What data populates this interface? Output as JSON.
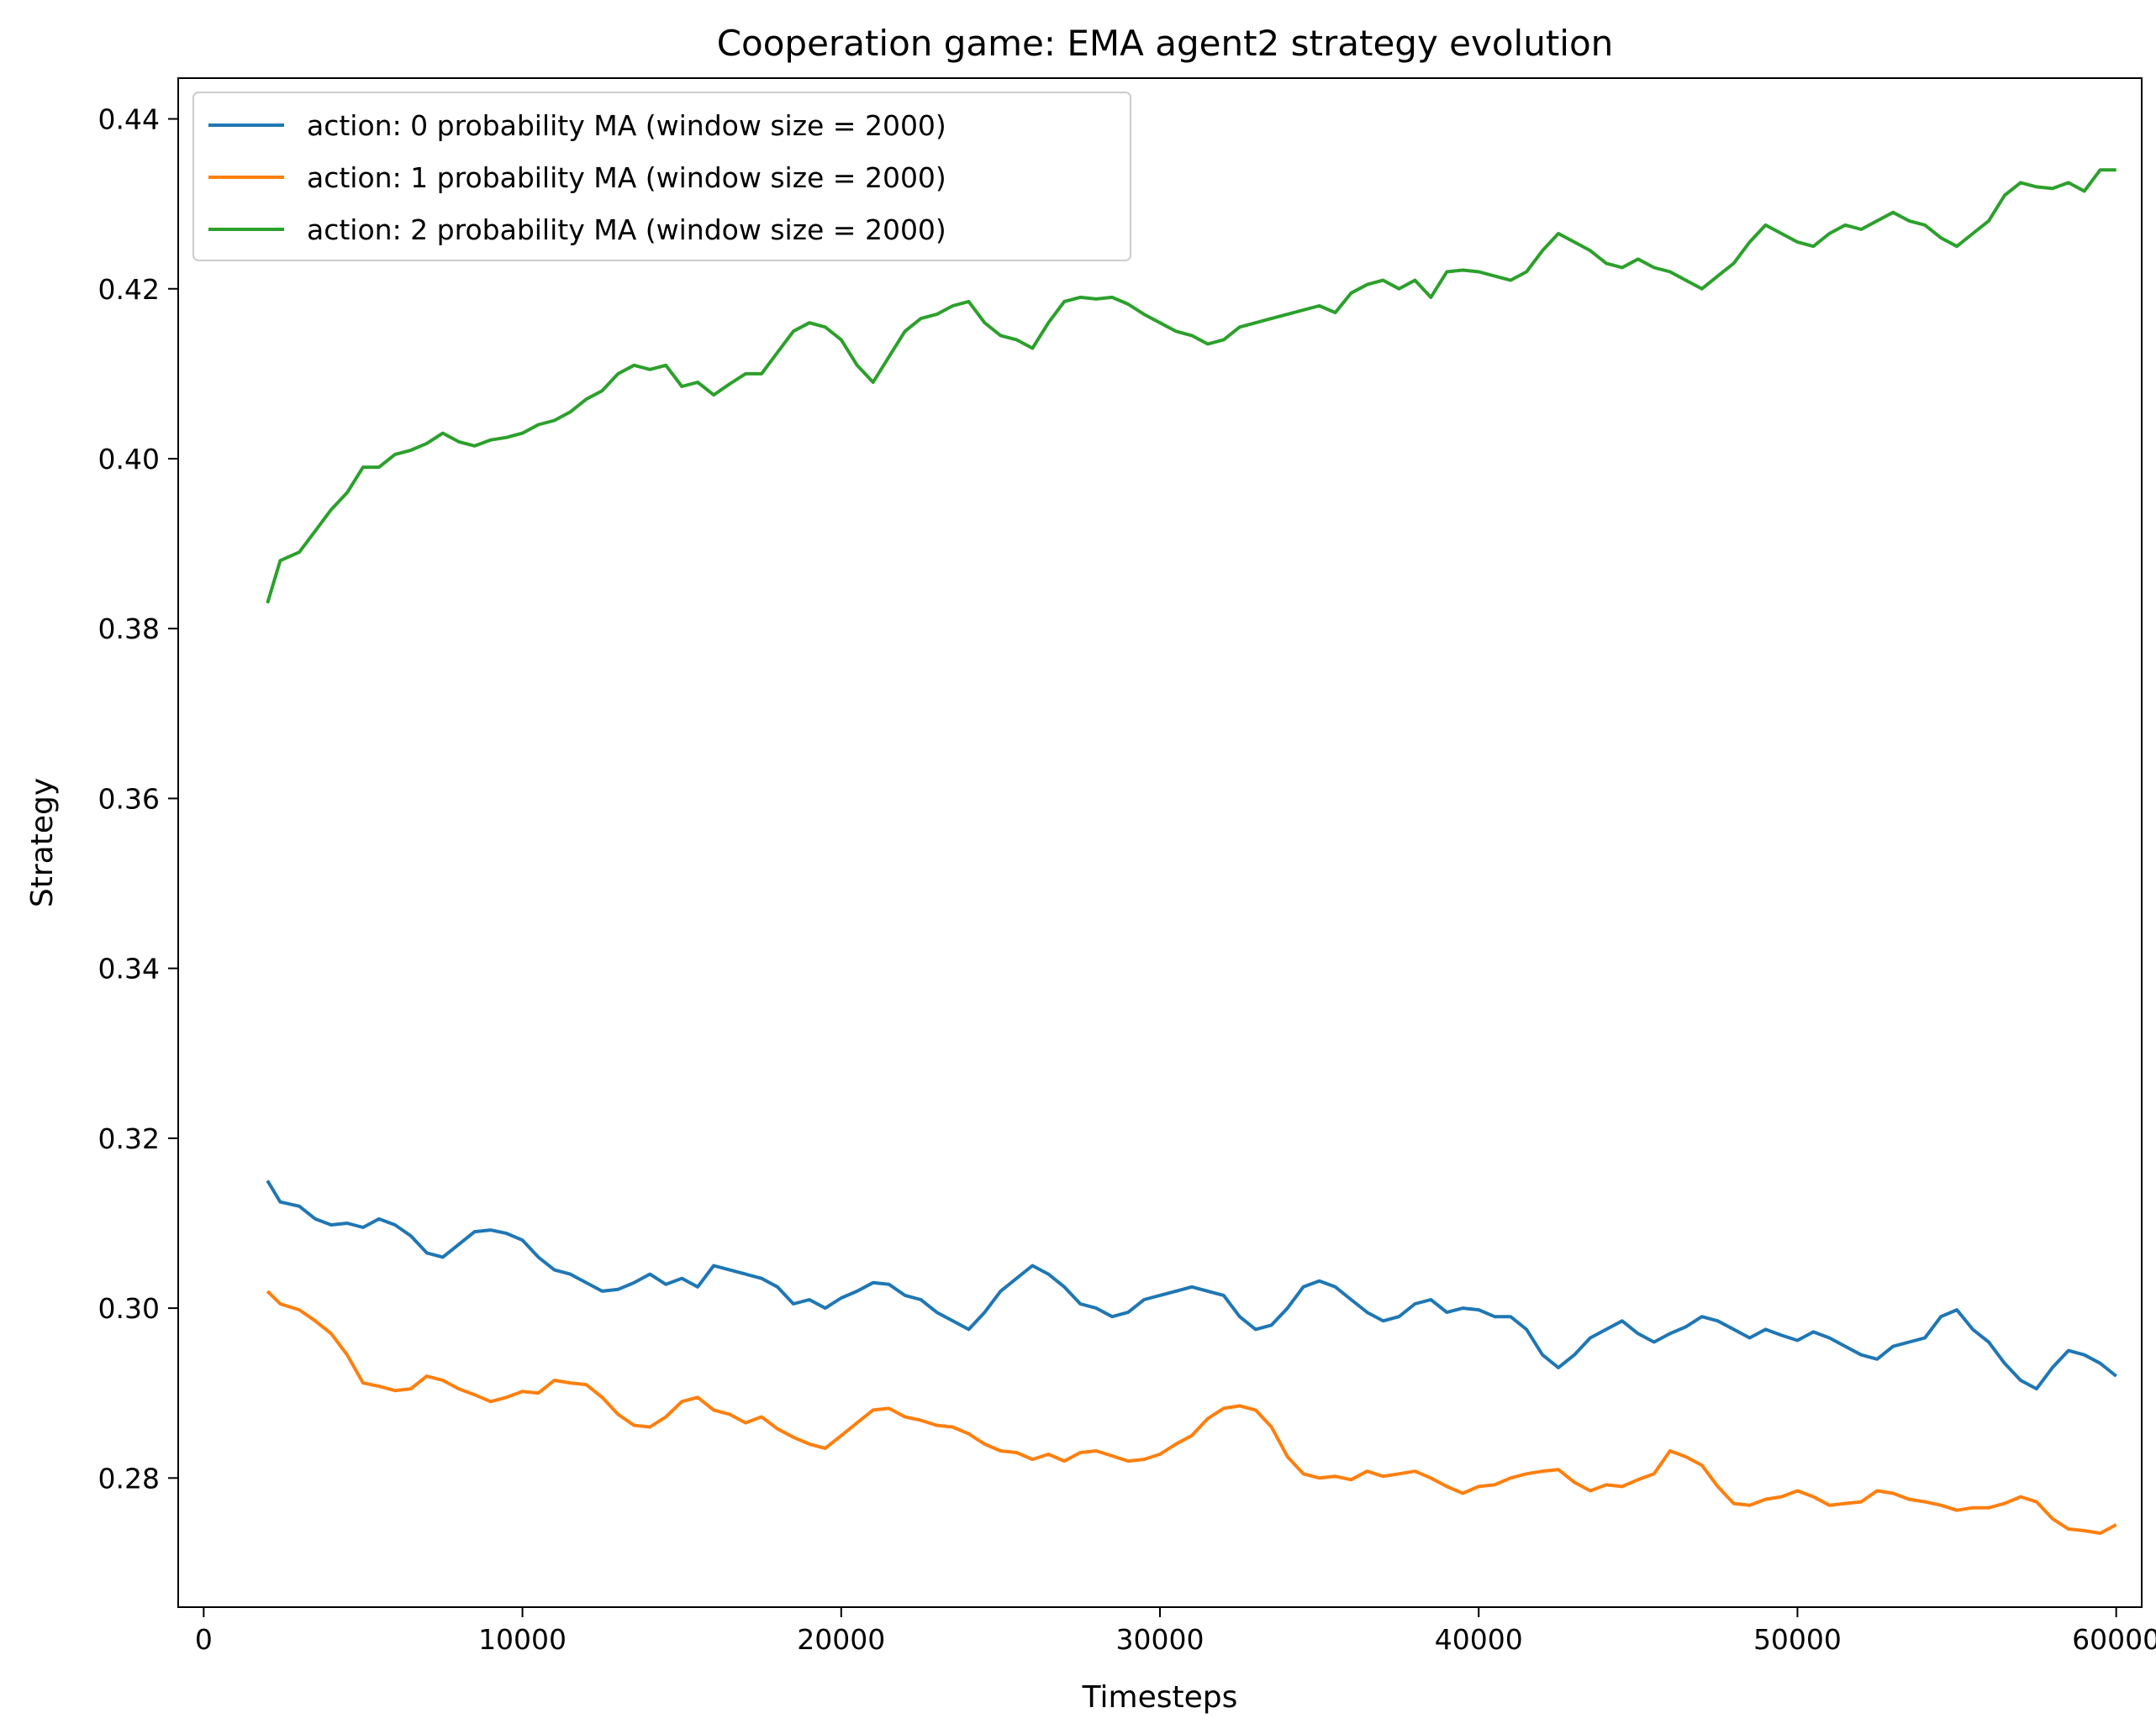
{
  "chart_data": {
    "type": "line",
    "title": "Cooperation game: EMA agent2 strategy evolution",
    "xlabel": "Timesteps",
    "ylabel": "Strategy",
    "xlim": [
      -800,
      60800
    ],
    "ylim": [
      0.2648,
      0.4448
    ],
    "xticks": [
      0,
      10000,
      20000,
      30000,
      40000,
      50000,
      60000
    ],
    "xtick_labels": [
      "0",
      "10000",
      "20000",
      "30000",
      "40000",
      "50000",
      "60000"
    ],
    "yticks": [
      0.28,
      0.3,
      0.32,
      0.34,
      0.36,
      0.38,
      0.4,
      0.42,
      0.44
    ],
    "ytick_labels": [
      "0.28",
      "0.30",
      "0.32",
      "0.34",
      "0.36",
      "0.38",
      "0.40",
      "0.42",
      "0.44"
    ],
    "grid": false,
    "legend_position": "top-left",
    "series": [
      {
        "name": "action: 0 probability MA (window size = 2000)",
        "color": "#1f77b4",
        "x": [
          2000,
          2400,
          3000,
          3500,
          4000,
          4500,
          5000,
          5500,
          6000,
          6500,
          7000,
          7500,
          8000,
          8500,
          9000,
          9500,
          10000,
          10500,
          11000,
          11500,
          12000,
          12500,
          13000,
          13500,
          14000,
          14500,
          15000,
          15500,
          16000,
          16500,
          17000,
          17500,
          18000,
          18500,
          19000,
          19500,
          20000,
          20500,
          21000,
          21500,
          22000,
          22500,
          23000,
          23500,
          24000,
          24500,
          25000,
          25500,
          26000,
          26500,
          27000,
          27500,
          28000,
          28500,
          29000,
          29500,
          30000,
          30500,
          31000,
          31500,
          32000,
          32500,
          33000,
          33500,
          34000,
          34500,
          35000,
          35500,
          36000,
          36500,
          37000,
          37500,
          38000,
          38500,
          39000,
          39500,
          40000,
          40500,
          41000,
          41500,
          42000,
          42500,
          43000,
          43500,
          44000,
          44500,
          45000,
          45500,
          46000,
          46500,
          47000,
          47500,
          48000,
          48500,
          49000,
          49500,
          50000,
          50500,
          51000,
          51500,
          52000,
          52500,
          53000,
          53500,
          54000,
          54500,
          55000,
          55500,
          56000,
          56500,
          57000,
          57500,
          58000,
          58500,
          59000,
          59500,
          60000
        ],
        "y": [
          0.315,
          0.3125,
          0.312,
          0.3105,
          0.3098,
          0.31,
          0.3095,
          0.3105,
          0.3098,
          0.3085,
          0.3065,
          0.306,
          0.3075,
          0.309,
          0.3092,
          0.3088,
          0.308,
          0.306,
          0.3045,
          0.304,
          0.303,
          0.302,
          0.3022,
          0.303,
          0.304,
          0.3028,
          0.3035,
          0.3025,
          0.305,
          0.3045,
          0.304,
          0.3035,
          0.3025,
          0.3005,
          0.301,
          0.3,
          0.3012,
          0.302,
          0.303,
          0.3028,
          0.3015,
          0.301,
          0.2995,
          0.2985,
          0.2975,
          0.2995,
          0.302,
          0.3035,
          0.305,
          0.304,
          0.3025,
          0.3005,
          0.3,
          0.299,
          0.2995,
          0.301,
          0.3015,
          0.302,
          0.3025,
          0.302,
          0.3015,
          0.299,
          0.2975,
          0.298,
          0.3,
          0.3025,
          0.3032,
          0.3025,
          0.301,
          0.2995,
          0.2985,
          0.299,
          0.3005,
          0.301,
          0.2995,
          0.3,
          0.2998,
          0.299,
          0.299,
          0.2975,
          0.2945,
          0.293,
          0.2945,
          0.2965,
          0.2975,
          0.2985,
          0.297,
          0.296,
          0.297,
          0.2978,
          0.299,
          0.2985,
          0.2975,
          0.2965,
          0.2975,
          0.2968,
          0.2962,
          0.2972,
          0.2965,
          0.2955,
          0.2945,
          0.294,
          0.2955,
          0.296,
          0.2965,
          0.299,
          0.2998,
          0.2975,
          0.296,
          0.2935,
          0.2915,
          0.2905,
          0.293,
          0.295,
          0.2945,
          0.2935,
          0.292
        ]
      },
      {
        "name": "action: 1 probability MA (window size = 2000)",
        "color": "#ff7f0e",
        "x": [
          2000,
          2400,
          3000,
          3500,
          4000,
          4500,
          5000,
          5500,
          6000,
          6500,
          7000,
          7500,
          8000,
          8500,
          9000,
          9500,
          10000,
          10500,
          11000,
          11500,
          12000,
          12500,
          13000,
          13500,
          14000,
          14500,
          15000,
          15500,
          16000,
          16500,
          17000,
          17500,
          18000,
          18500,
          19000,
          19500,
          20000,
          20500,
          21000,
          21500,
          22000,
          22500,
          23000,
          23500,
          24000,
          24500,
          25000,
          25500,
          26000,
          26500,
          27000,
          27500,
          28000,
          28500,
          29000,
          29500,
          30000,
          30500,
          31000,
          31500,
          32000,
          32500,
          33000,
          33500,
          34000,
          34500,
          35000,
          35500,
          36000,
          36500,
          37000,
          37500,
          38000,
          38500,
          39000,
          39500,
          40000,
          40500,
          41000,
          41500,
          42000,
          42500,
          43000,
          43500,
          44000,
          44500,
          45000,
          45500,
          46000,
          46500,
          47000,
          47500,
          48000,
          48500,
          49000,
          49500,
          50000,
          50500,
          51000,
          51500,
          52000,
          52500,
          53000,
          53500,
          54000,
          54500,
          55000,
          55500,
          56000,
          56500,
          57000,
          57500,
          58000,
          58500,
          59000,
          59500,
          60000
        ],
        "y": [
          0.302,
          0.3005,
          0.2998,
          0.2985,
          0.297,
          0.2945,
          0.2912,
          0.2908,
          0.2903,
          0.2905,
          0.292,
          0.2915,
          0.2905,
          0.2898,
          0.289,
          0.2895,
          0.2902,
          0.29,
          0.2915,
          0.2912,
          0.291,
          0.2895,
          0.2875,
          0.2862,
          0.286,
          0.2872,
          0.289,
          0.2895,
          0.288,
          0.2875,
          0.2865,
          0.2872,
          0.2858,
          0.2848,
          0.284,
          0.2835,
          0.285,
          0.2865,
          0.288,
          0.2882,
          0.2872,
          0.2868,
          0.2862,
          0.286,
          0.2852,
          0.284,
          0.2832,
          0.283,
          0.2822,
          0.2828,
          0.282,
          0.283,
          0.2832,
          0.2826,
          0.282,
          0.2822,
          0.2828,
          0.284,
          0.285,
          0.287,
          0.2882,
          0.2885,
          0.288,
          0.286,
          0.2825,
          0.2805,
          0.28,
          0.2802,
          0.2798,
          0.2808,
          0.2802,
          0.2805,
          0.2808,
          0.28,
          0.279,
          0.2782,
          0.279,
          0.2792,
          0.28,
          0.2805,
          0.2808,
          0.281,
          0.2795,
          0.2785,
          0.2792,
          0.279,
          0.2798,
          0.2805,
          0.2832,
          0.2825,
          0.2815,
          0.279,
          0.277,
          0.2768,
          0.2775,
          0.2778,
          0.2785,
          0.2778,
          0.2768,
          0.277,
          0.2772,
          0.2785,
          0.2782,
          0.2775,
          0.2772,
          0.2768,
          0.2762,
          0.2765,
          0.2765,
          0.277,
          0.2778,
          0.2772,
          0.2752,
          0.274,
          0.2738,
          0.2735,
          0.2745
        ]
      },
      {
        "name": "action: 2 probability MA (window size = 2000)",
        "color": "#2ca02c",
        "x": [
          2000,
          2400,
          3000,
          3500,
          4000,
          4500,
          5000,
          5500,
          6000,
          6500,
          7000,
          7500,
          8000,
          8500,
          9000,
          9500,
          10000,
          10500,
          11000,
          11500,
          12000,
          12500,
          13000,
          13500,
          14000,
          14500,
          15000,
          15500,
          16000,
          16500,
          17000,
          17500,
          18000,
          18500,
          19000,
          19500,
          20000,
          20500,
          21000,
          21500,
          22000,
          22500,
          23000,
          23500,
          24000,
          24500,
          25000,
          25500,
          26000,
          26500,
          27000,
          27500,
          28000,
          28500,
          29000,
          29500,
          30000,
          30500,
          31000,
          31500,
          32000,
          32500,
          33000,
          33500,
          34000,
          34500,
          35000,
          35500,
          36000,
          36500,
          37000,
          37500,
          38000,
          38500,
          39000,
          39500,
          40000,
          40500,
          41000,
          41500,
          42000,
          42500,
          43000,
          43500,
          44000,
          44500,
          45000,
          45500,
          46000,
          46500,
          47000,
          47500,
          48000,
          48500,
          49000,
          49500,
          50000,
          50500,
          51000,
          51500,
          52000,
          52500,
          53000,
          53500,
          54000,
          54500,
          55000,
          55500,
          56000,
          56500,
          57000,
          57500,
          58000,
          58500,
          59000,
          59500,
          60000
        ],
        "y": [
          0.383,
          0.388,
          0.389,
          0.3915,
          0.394,
          0.396,
          0.399,
          0.399,
          0.4005,
          0.401,
          0.4018,
          0.403,
          0.402,
          0.4015,
          0.4022,
          0.4025,
          0.403,
          0.404,
          0.4045,
          0.4055,
          0.407,
          0.408,
          0.41,
          0.411,
          0.4105,
          0.411,
          0.4085,
          0.409,
          0.4075,
          0.4088,
          0.41,
          0.41,
          0.4125,
          0.415,
          0.416,
          0.4155,
          0.414,
          0.411,
          0.409,
          0.412,
          0.415,
          0.4165,
          0.417,
          0.418,
          0.4185,
          0.416,
          0.4145,
          0.414,
          0.413,
          0.416,
          0.4185,
          0.419,
          0.4188,
          0.419,
          0.4182,
          0.417,
          0.416,
          0.415,
          0.4145,
          0.4135,
          0.414,
          0.4155,
          0.416,
          0.4165,
          0.417,
          0.4175,
          0.418,
          0.4172,
          0.4195,
          0.4205,
          0.421,
          0.42,
          0.421,
          0.419,
          0.422,
          0.4222,
          0.422,
          0.4215,
          0.421,
          0.422,
          0.4245,
          0.4265,
          0.4255,
          0.4245,
          0.423,
          0.4225,
          0.4235,
          0.4225,
          0.422,
          0.421,
          0.42,
          0.4215,
          0.423,
          0.4255,
          0.4275,
          0.4265,
          0.4255,
          0.425,
          0.4265,
          0.4275,
          0.427,
          0.428,
          0.429,
          0.428,
          0.4275,
          0.426,
          0.425,
          0.4265,
          0.428,
          0.431,
          0.4325,
          0.432,
          0.4318,
          0.4325,
          0.4315,
          0.434,
          0.434
        ]
      }
    ]
  }
}
